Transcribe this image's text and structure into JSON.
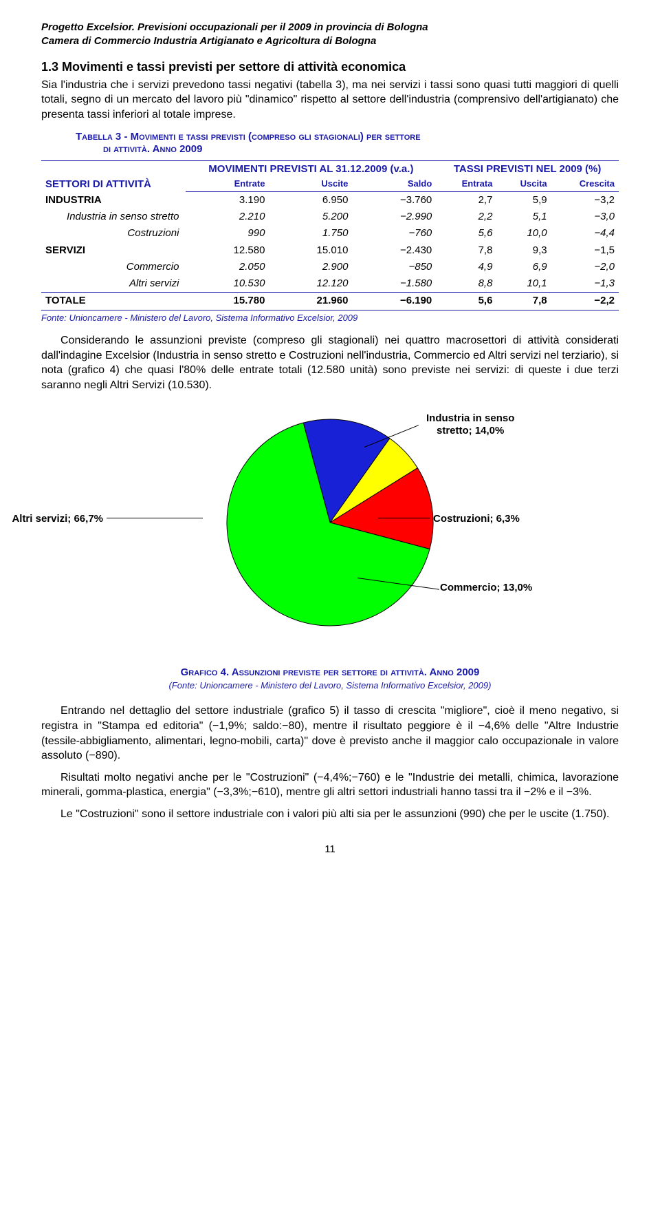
{
  "header": {
    "title": "Progetto Excelsior. Previsioni occupazionali per il 2009 in provincia di Bologna",
    "subtitle": "Camera di Commercio Industria Artigianato e Agricoltura di Bologna"
  },
  "section": {
    "heading": "1.3 Movimenti e tassi previsti per settore di attività economica",
    "intro": "Sia l'industria che i servizi prevedono tassi negativi (tabella 3), ma nei servizi i tassi sono quasi tutti maggiori di quelli totali, segno di un mercato del lavoro più \"dinamico\" rispetto al settore dell'industria (comprensivo dell'artigianato) che presenta tassi inferiori al totale imprese."
  },
  "table": {
    "caption_line1": "Tabella 3 - Movimenti e tassi previsti (compreso gli stagionali) per settore",
    "caption_line2": "di attività. Anno 2009",
    "col_settori": "SETTORI DI ATTIVITÀ",
    "grp1": "MOVIMENTI PREVISTI AL 31.12.2009 (v.a.)",
    "grp2": "TASSI PREVISTI NEL 2009 (%)",
    "cols": {
      "c1": "Entrate",
      "c2": "Uscite",
      "c3": "Saldo",
      "c4": "Entrata",
      "c5": "Uscita",
      "c6": "Crescita"
    },
    "rows": [
      {
        "label": "INDUSTRIA",
        "type": "main",
        "v": [
          "3.190",
          "6.950",
          "−3.760",
          "2,7",
          "5,9",
          "−3,2"
        ]
      },
      {
        "label": "Industria in senso stretto",
        "type": "sub",
        "v": [
          "2.210",
          "5.200",
          "−2.990",
          "2,2",
          "5,1",
          "−3,0"
        ]
      },
      {
        "label": "Costruzioni",
        "type": "sub",
        "v": [
          "990",
          "1.750",
          "−760",
          "5,6",
          "10,0",
          "−4,4"
        ]
      },
      {
        "label": "SERVIZI",
        "type": "main",
        "v": [
          "12.580",
          "15.010",
          "−2.430",
          "7,8",
          "9,3",
          "−1,5"
        ]
      },
      {
        "label": "Commercio",
        "type": "sub",
        "v": [
          "2.050",
          "2.900",
          "−850",
          "4,9",
          "6,9",
          "−2,0"
        ]
      },
      {
        "label": "Altri servizi",
        "type": "sub",
        "v": [
          "10.530",
          "12.120",
          "−1.580",
          "8,8",
          "10,1",
          "−1,3"
        ]
      }
    ],
    "total": {
      "label": "TOTALE",
      "v": [
        "15.780",
        "21.960",
        "−6.190",
        "5,6",
        "7,8",
        "−2,2"
      ]
    },
    "fonte": "Fonte: Unioncamere - Ministero del Lavoro, Sistema Informativo Excelsior, 2009"
  },
  "para_after_table": "Considerando le assunzioni previste (compreso gli stagionali) nei quattro macrosettori di attività considerati dall'indagine Excelsior (Industria in senso stretto e Costruzioni nell'industria, Commercio ed Altri servizi nel terziario), si nota (grafico 4) che quasi l'80% delle entrate totali (12.580 unità) sono previste nei servizi: di queste i due terzi saranno negli Altri Servizi (10.530).",
  "pie": {
    "type": "pie",
    "slices": [
      {
        "label": "Industria in senso stretto; 14,0%",
        "value": 14.0,
        "color": "#1821d6"
      },
      {
        "label": "Costruzioni; 6,3%",
        "value": 6.3,
        "color": "#ffff00"
      },
      {
        "label": "Commercio; 13,0%",
        "value": 13.0,
        "color": "#ff0000"
      },
      {
        "label": "Altri servizi; 66,7%",
        "value": 66.7,
        "color": "#00ff00"
      }
    ],
    "stroke": "#000000",
    "label_fontsize": 15,
    "label_fontweight": "bold",
    "radius": 150,
    "start_angle_deg": -15
  },
  "grafico": {
    "caption": "Grafico 4. Assunzioni previste per settore di attività. Anno 2009",
    "fonte": "(Fonte: Unioncamere - Ministero del Lavoro, Sistema Informativo Excelsior, 2009)"
  },
  "para3": "Entrando nel dettaglio del settore industriale (grafico 5) il tasso di crescita \"migliore\", cioè il meno negativo, si registra in \"Stampa ed editoria\" (−1,9%; saldo:−80), mentre il risultato peggiore è il −4,6% delle \"Altre Industrie (tessile-abbigliamento, alimentari, legno-mobili, carta)\" dove è previsto anche il maggior calo occupazionale in valore assoluto (−890).",
  "para4": "Risultati molto negativi anche per le \"Costruzioni\" (−4,4%;−760) e le \"Industrie dei metalli, chimica, lavorazione minerali, gomma-plastica, energia\" (−3,3%;−610), mentre gli altri settori industriali hanno tassi tra il −2% e il −3%.",
  "para5": "Le \"Costruzioni\" sono il settore industriale con i valori più alti sia per le assunzioni (990) che per le uscite (1.750).",
  "pagenum": "11"
}
